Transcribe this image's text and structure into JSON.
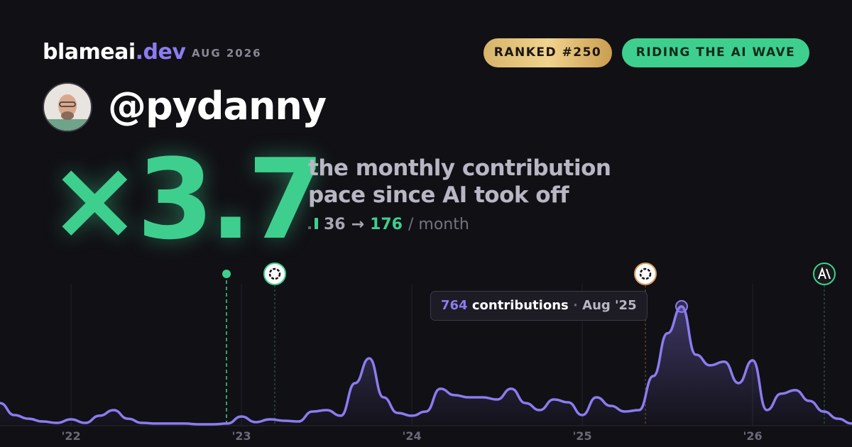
{
  "header": {
    "brand_name": "blameai",
    "brand_tld": ".dev",
    "date": "AUG 2026",
    "badges": [
      "RANKED #250",
      "RIDING THE AI WAVE"
    ]
  },
  "user": {
    "handle": "@pydanny"
  },
  "headline": {
    "multiplier": "×3.7",
    "description": "the monthly contribution pace since AI took off",
    "before": 36,
    "arrow": "→",
    "after": 176,
    "unit": "/ month"
  },
  "chart_data": {
    "type": "area",
    "x": [
      2021.583,
      2021.667,
      2021.75,
      2021.833,
      2021.917,
      2022,
      2022.083,
      2022.167,
      2022.25,
      2022.333,
      2022.417,
      2022.5,
      2022.583,
      2022.667,
      2022.75,
      2022.833,
      2022.917,
      2023,
      2023.083,
      2023.167,
      2023.25,
      2023.333,
      2023.417,
      2023.5,
      2023.583,
      2023.667,
      2023.75,
      2023.833,
      2023.917,
      2024,
      2024.083,
      2024.167,
      2024.25,
      2024.333,
      2024.417,
      2024.5,
      2024.583,
      2024.667,
      2024.75,
      2024.833,
      2024.917,
      2025,
      2025.083,
      2025.167,
      2025.25,
      2025.333,
      2025.417,
      2025.5,
      2025.583,
      2025.667,
      2025.75,
      2025.833,
      2025.917,
      2026,
      2026.083,
      2026.167,
      2026.25,
      2026.333,
      2026.417,
      2026.5,
      2026.583
    ],
    "series": [
      {
        "name": "contributions",
        "color": "#8b7cf0",
        "values": [
          145,
          68,
          45,
          27,
          18,
          41,
          18,
          64,
          100,
          45,
          18,
          14,
          14,
          14,
          9,
          9,
          14,
          59,
          23,
          41,
          32,
          27,
          91,
          100,
          64,
          273,
          432,
          182,
          82,
          64,
          91,
          237,
          196,
          182,
          182,
          168,
          237,
          145,
          100,
          168,
          150,
          68,
          182,
          127,
          91,
          100,
          318,
          592,
          764,
          455,
          387,
          410,
          273,
          419,
          100,
          205,
          228,
          159,
          91,
          45,
          14
        ]
      }
    ],
    "xlim": [
      2021.583,
      2026.583
    ],
    "xticks": [
      {
        "value": 2022,
        "label": "'22"
      },
      {
        "value": 2023,
        "label": "'23"
      },
      {
        "value": 2024,
        "label": "'24"
      },
      {
        "value": 2025,
        "label": "'25"
      },
      {
        "value": 2026,
        "label": "'26"
      }
    ],
    "ylim": [
      0,
      1000
    ],
    "grid": true,
    "tooltip": {
      "label": "contributions",
      "separator": "·",
      "date": "Aug '25"
    }
  }
}
